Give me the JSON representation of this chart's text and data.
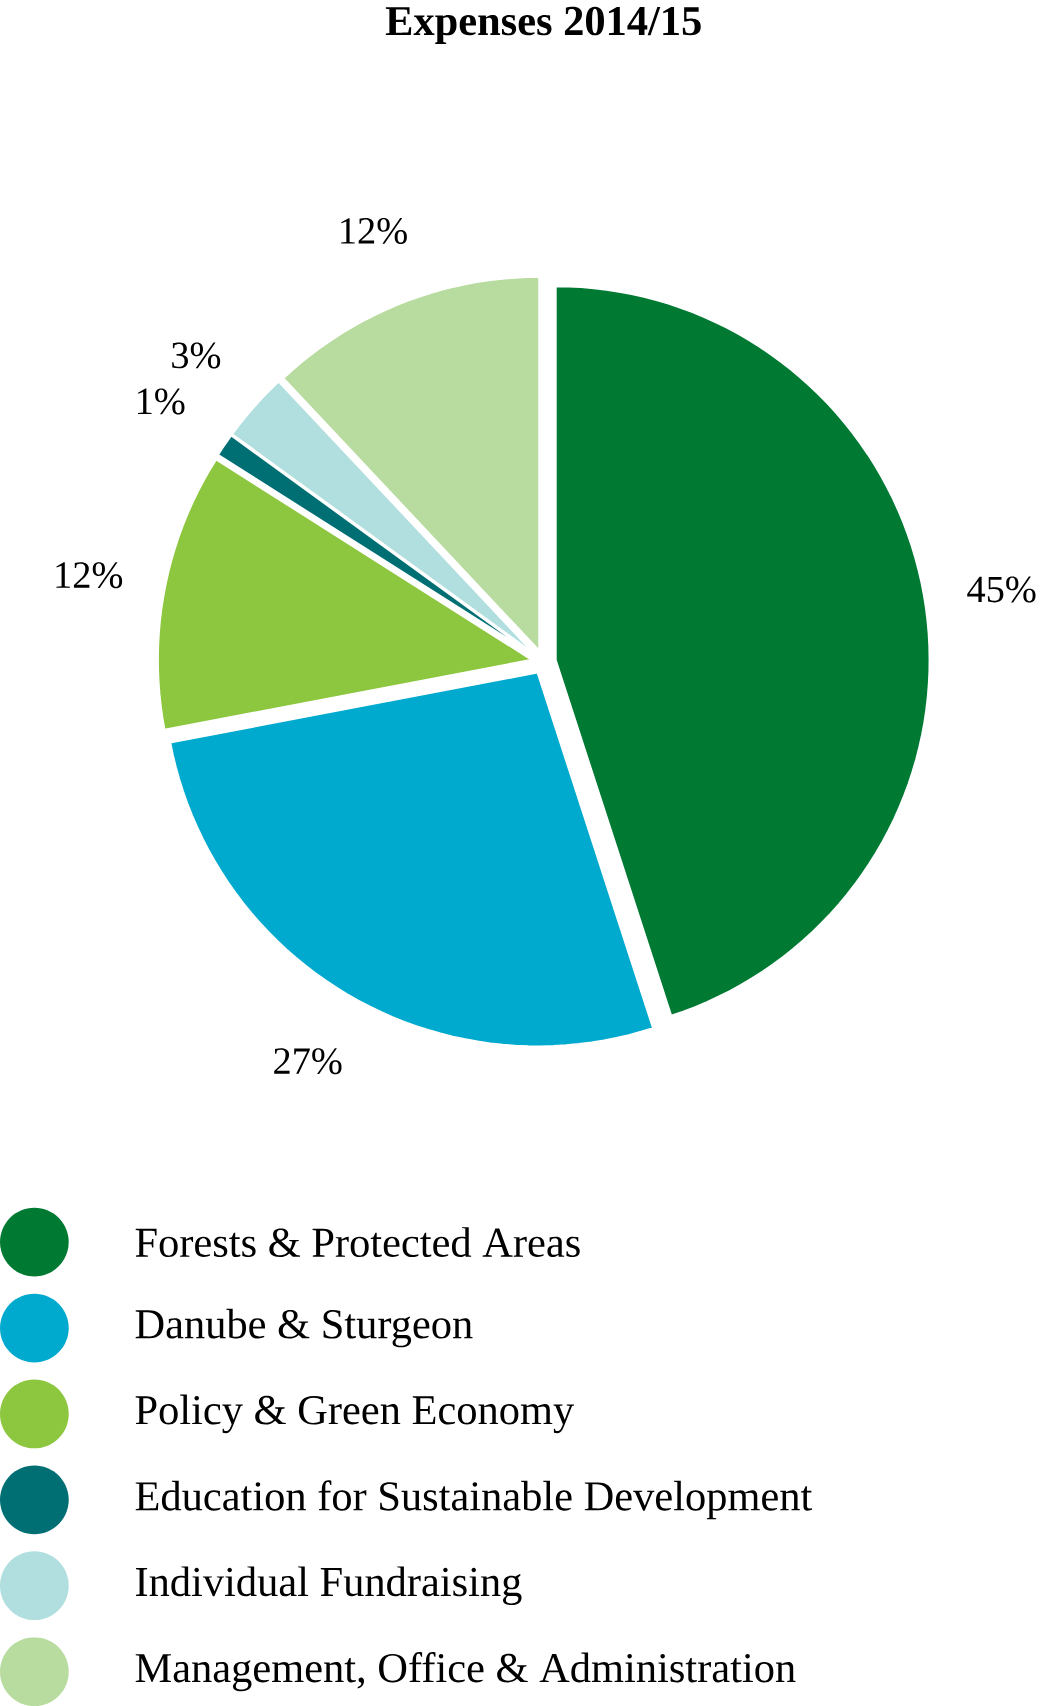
{
  "chart_data": {
    "type": "pie",
    "title": "Expenses 2014/15",
    "categories": [
      "Forests & Protected Areas",
      "Danube & Sturgeon",
      "Policy & Green Economy",
      "Education for Sustainable Development",
      "Individual Fundraising",
      "Management, Office & Administration"
    ],
    "values": [
      45,
      27,
      12,
      1,
      3,
      12
    ],
    "value_labels": [
      "45%",
      "27%",
      "12%",
      "1%",
      "3%",
      "12%"
    ],
    "colors": [
      "#007a33",
      "#00a9ce",
      "#8dc63f",
      "#006f73",
      "#b1dfdf",
      "#b8dca0"
    ],
    "legend": "bottom"
  }
}
